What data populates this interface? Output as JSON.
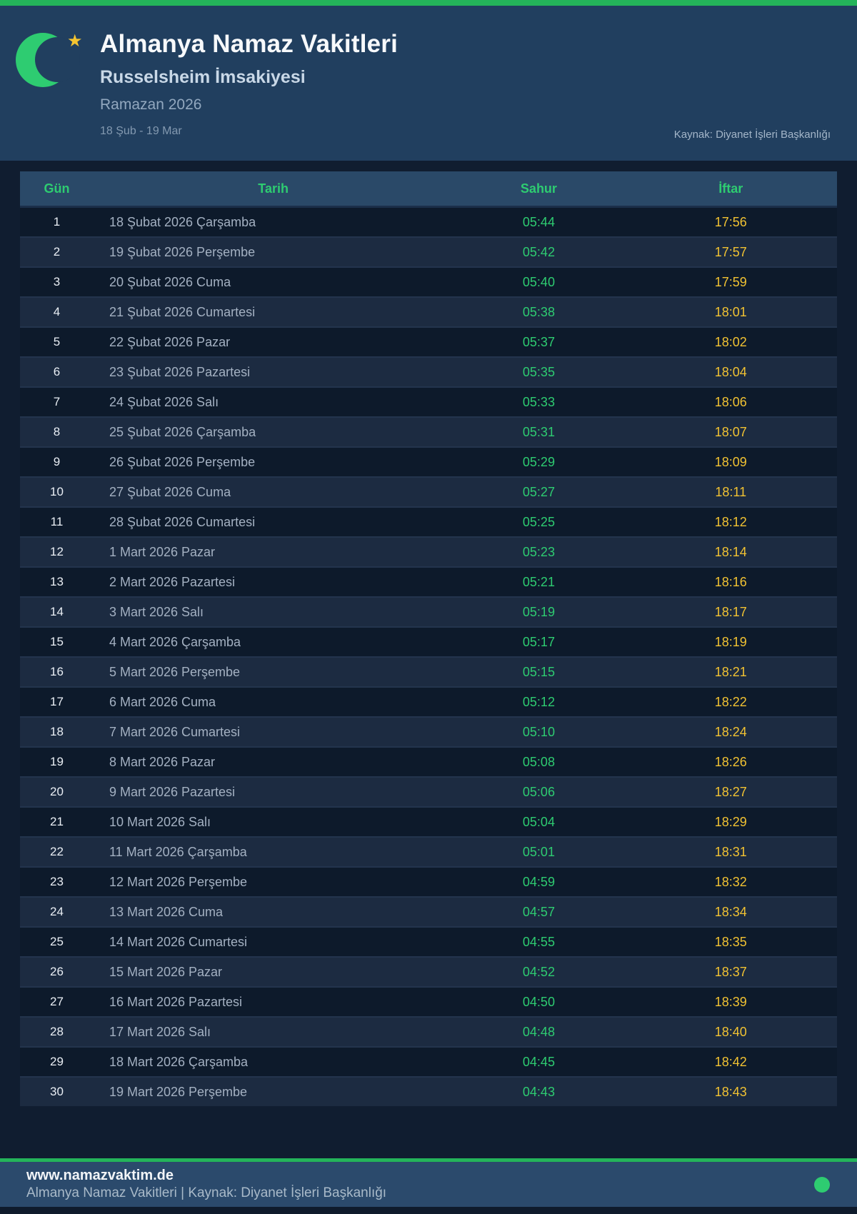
{
  "page": {
    "title": "Almanya Namaz Vakitleri",
    "subtitle": "Russelsheim İmsakiyesi",
    "season": "Ramazan 2026",
    "date_range": "18 Şub - 19 Mar",
    "source": "Kaynak: Diyanet İşleri Başkanlığı"
  },
  "icons": {
    "logo": "crescent-moon-icon",
    "star_glyph": "★",
    "status_dot": "green-dot"
  },
  "colors": {
    "accent_green": "#2ecc71",
    "accent_yellow": "#f1c232",
    "bar_green": "#24b45a",
    "star_gold": "#f4c430",
    "header_bg": "#213f5f",
    "page_bg": "#101d30",
    "footer_bg": "#2b4a6c",
    "table_header_bg": "#2a4968",
    "row_odd_bg": "#0d1a2b",
    "row_even_bg": "#1c2b41"
  },
  "table": {
    "columns": [
      "Gün",
      "Tarih",
      "Sahur",
      "İftar"
    ],
    "rows": [
      {
        "day": "1",
        "date": "18 Şubat 2026 Çarşamba",
        "sahur": "05:44",
        "iftar": "17:56"
      },
      {
        "day": "2",
        "date": "19 Şubat 2026 Perşembe",
        "sahur": "05:42",
        "iftar": "17:57"
      },
      {
        "day": "3",
        "date": "20 Şubat 2026 Cuma",
        "sahur": "05:40",
        "iftar": "17:59"
      },
      {
        "day": "4",
        "date": "21 Şubat 2026 Cumartesi",
        "sahur": "05:38",
        "iftar": "18:01"
      },
      {
        "day": "5",
        "date": "22 Şubat 2026 Pazar",
        "sahur": "05:37",
        "iftar": "18:02"
      },
      {
        "day": "6",
        "date": "23 Şubat 2026 Pazartesi",
        "sahur": "05:35",
        "iftar": "18:04"
      },
      {
        "day": "7",
        "date": "24 Şubat 2026 Salı",
        "sahur": "05:33",
        "iftar": "18:06"
      },
      {
        "day": "8",
        "date": "25 Şubat 2026 Çarşamba",
        "sahur": "05:31",
        "iftar": "18:07"
      },
      {
        "day": "9",
        "date": "26 Şubat 2026 Perşembe",
        "sahur": "05:29",
        "iftar": "18:09"
      },
      {
        "day": "10",
        "date": "27 Şubat 2026 Cuma",
        "sahur": "05:27",
        "iftar": "18:11"
      },
      {
        "day": "11",
        "date": "28 Şubat 2026 Cumartesi",
        "sahur": "05:25",
        "iftar": "18:12"
      },
      {
        "day": "12",
        "date": "1 Mart 2026 Pazar",
        "sahur": "05:23",
        "iftar": "18:14"
      },
      {
        "day": "13",
        "date": "2 Mart 2026 Pazartesi",
        "sahur": "05:21",
        "iftar": "18:16"
      },
      {
        "day": "14",
        "date": "3 Mart 2026 Salı",
        "sahur": "05:19",
        "iftar": "18:17"
      },
      {
        "day": "15",
        "date": "4 Mart 2026 Çarşamba",
        "sahur": "05:17",
        "iftar": "18:19"
      },
      {
        "day": "16",
        "date": "5 Mart 2026 Perşembe",
        "sahur": "05:15",
        "iftar": "18:21"
      },
      {
        "day": "17",
        "date": "6 Mart 2026 Cuma",
        "sahur": "05:12",
        "iftar": "18:22"
      },
      {
        "day": "18",
        "date": "7 Mart 2026 Cumartesi",
        "sahur": "05:10",
        "iftar": "18:24"
      },
      {
        "day": "19",
        "date": "8 Mart 2026 Pazar",
        "sahur": "05:08",
        "iftar": "18:26"
      },
      {
        "day": "20",
        "date": "9 Mart 2026 Pazartesi",
        "sahur": "05:06",
        "iftar": "18:27"
      },
      {
        "day": "21",
        "date": "10 Mart 2026 Salı",
        "sahur": "05:04",
        "iftar": "18:29"
      },
      {
        "day": "22",
        "date": "11 Mart 2026 Çarşamba",
        "sahur": "05:01",
        "iftar": "18:31"
      },
      {
        "day": "23",
        "date": "12 Mart 2026 Perşembe",
        "sahur": "04:59",
        "iftar": "18:32"
      },
      {
        "day": "24",
        "date": "13 Mart 2026 Cuma",
        "sahur": "04:57",
        "iftar": "18:34"
      },
      {
        "day": "25",
        "date": "14 Mart 2026 Cumartesi",
        "sahur": "04:55",
        "iftar": "18:35"
      },
      {
        "day": "26",
        "date": "15 Mart 2026 Pazar",
        "sahur": "04:52",
        "iftar": "18:37"
      },
      {
        "day": "27",
        "date": "16 Mart 2026 Pazartesi",
        "sahur": "04:50",
        "iftar": "18:39"
      },
      {
        "day": "28",
        "date": "17 Mart 2026 Salı",
        "sahur": "04:48",
        "iftar": "18:40"
      },
      {
        "day": "29",
        "date": "18 Mart 2026 Çarşamba",
        "sahur": "04:45",
        "iftar": "18:42"
      },
      {
        "day": "30",
        "date": "19 Mart 2026 Perşembe",
        "sahur": "04:43",
        "iftar": "18:43"
      }
    ]
  },
  "footer": {
    "site": "www.namazvaktim.de",
    "line": "Almanya Namaz Vakitleri | Kaynak: Diyanet İşleri Başkanlığı"
  }
}
